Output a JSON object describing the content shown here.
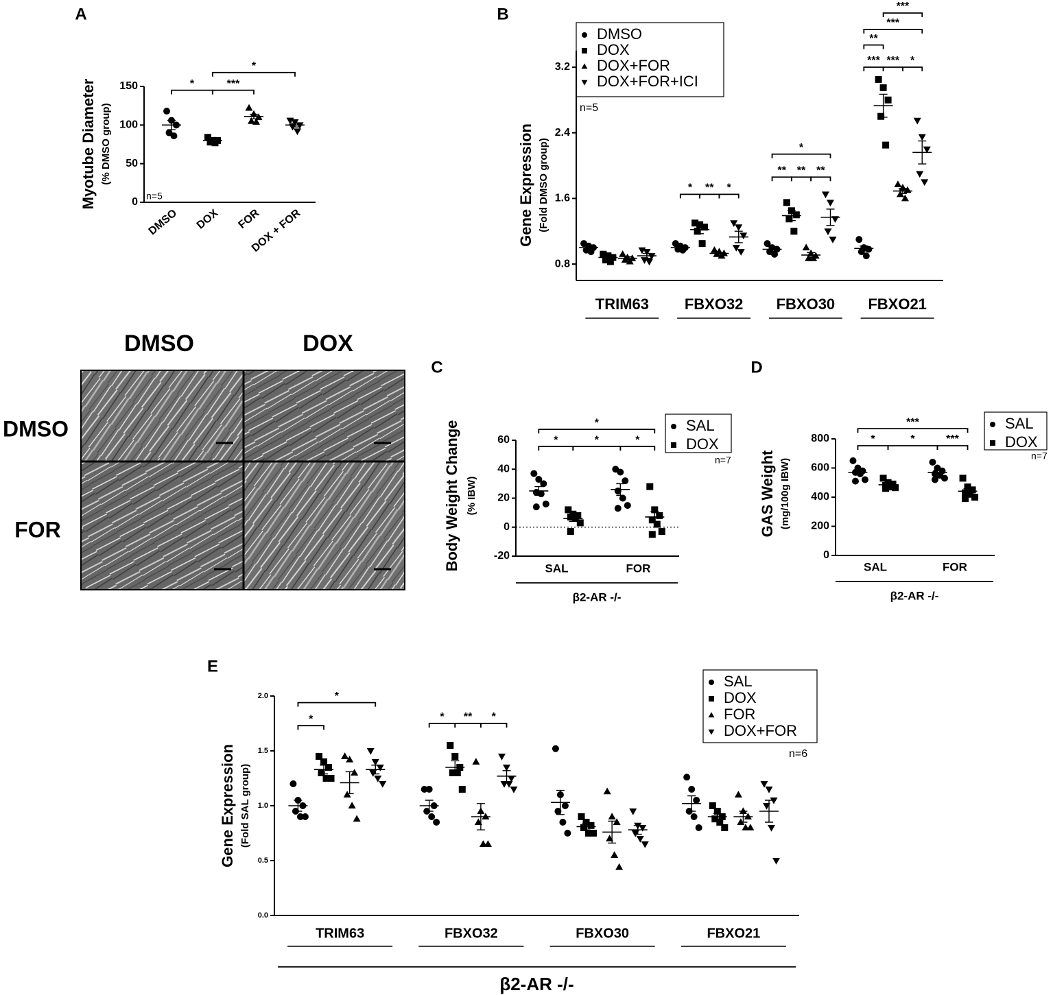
{
  "chart_data": [
    {
      "type": "dotplot",
      "panel": "A",
      "ylabel": "Myotube Diameter",
      "ylabel_sub": "(% DMSO group)",
      "color": "#000000",
      "ylim": [
        0,
        150
      ],
      "yticks": [
        0,
        50,
        100,
        150
      ],
      "groups": [
        null
      ],
      "series_ticks": true,
      "note": "n=5",
      "series": [
        {
          "name": "DMSO",
          "marker": "circle",
          "points": [
            [
              118,
              106,
              100,
              90,
              86
            ]
          ],
          "mean": [
            100
          ],
          "sem": [
            6
          ]
        },
        {
          "name": "DOX",
          "marker": "square",
          "points": [
            [
              84,
              80,
              80,
              78,
              77
            ]
          ],
          "mean": [
            80
          ],
          "sem": [
            1.5
          ]
        },
        {
          "name": "FOR",
          "marker": "triangle",
          "points": [
            [
              122,
              114,
              110,
              105,
              104
            ]
          ],
          "mean": [
            111
          ],
          "sem": [
            3
          ]
        },
        {
          "name": "DOX + FOR",
          "marker": "triangle-down",
          "points": [
            [
              106,
              104,
              100,
              98,
              92
            ]
          ],
          "mean": [
            100
          ],
          "sem": [
            2.5
          ]
        }
      ],
      "brackets": [
        {
          "from": [
            0,
            0
          ],
          "to": [
            0,
            1
          ],
          "y": 145,
          "label": "*"
        },
        {
          "from": [
            0,
            1
          ],
          "to": [
            0,
            2
          ],
          "y": 145,
          "label": "***"
        },
        {
          "from": [
            0,
            1
          ],
          "to": [
            0,
            3
          ],
          "y": 168,
          "label": "*"
        }
      ]
    },
    {
      "type": "dotplot",
      "panel": "B",
      "ylabel": "Gene Expression",
      "ylabel_sub": "(Fold DMSO group)",
      "color": "#000000",
      "ylim": [
        0.6,
        3.4
      ],
      "yticks": [
        0.8,
        1.6,
        2.4,
        3.2
      ],
      "groups": [
        "TRIM63",
        "FBXO32",
        "FBXO30",
        "FBXO21"
      ],
      "legend": "upper left",
      "note": "n=5",
      "series": [
        {
          "name": "DMSO",
          "marker": "circle",
          "points": [
            [
              1.05,
              1.02,
              1.0,
              0.97,
              0.95
            ],
            [
              1.05,
              1.02,
              1.0,
              0.98,
              0.97
            ],
            [
              1.05,
              1.0,
              0.98,
              0.95,
              0.92
            ],
            [
              1.1,
              1.0,
              0.98,
              0.95,
              0.9
            ]
          ],
          "mean": [
            1.0,
            1.0,
            0.98,
            0.99
          ],
          "sem": [
            0.02,
            0.02,
            0.03,
            0.03
          ]
        },
        {
          "name": "DOX",
          "marker": "square",
          "points": [
            [
              0.92,
              0.9,
              0.88,
              0.85,
              0.83
            ],
            [
              1.3,
              1.28,
              1.25,
              1.2,
              1.05
            ],
            [
              1.55,
              1.45,
              1.4,
              1.35,
              1.2
            ],
            [
              3.05,
              2.95,
              2.8,
              2.6,
              2.25
            ]
          ],
          "mean": [
            0.88,
            1.22,
            1.39,
            2.73
          ],
          "sem": [
            0.02,
            0.05,
            0.06,
            0.14
          ]
        },
        {
          "name": "DOX+FOR",
          "marker": "triangle",
          "points": [
            [
              0.92,
              0.88,
              0.87,
              0.85,
              0.83
            ],
            [
              0.97,
              0.95,
              0.93,
              0.92,
              0.9
            ],
            [
              1.0,
              0.93,
              0.9,
              0.87,
              0.87
            ],
            [
              1.77,
              1.73,
              1.7,
              1.65,
              1.6
            ]
          ],
          "mean": [
            0.87,
            0.93,
            0.91,
            1.69
          ],
          "sem": [
            0.02,
            0.01,
            0.03,
            0.03
          ]
        },
        {
          "name": "DOX+FOR+ICI",
          "marker": "triangle-down",
          "points": [
            [
              0.97,
              0.95,
              0.9,
              0.85,
              0.83
            ],
            [
              1.3,
              1.25,
              1.15,
              1.0,
              0.95
            ],
            [
              1.65,
              1.55,
              1.35,
              1.2,
              1.1
            ],
            [
              2.55,
              2.35,
              2.2,
              1.9,
              1.8
            ]
          ],
          "mean": [
            0.9,
            1.13,
            1.37,
            2.16
          ],
          "sem": [
            0.03,
            0.07,
            0.1,
            0.14
          ]
        }
      ],
      "brackets": [
        {
          "from": [
            1,
            0
          ],
          "to": [
            1,
            1
          ],
          "y": 1.65,
          "label": "*"
        },
        {
          "from": [
            1,
            1
          ],
          "to": [
            1,
            2
          ],
          "y": 1.65,
          "label": "**"
        },
        {
          "from": [
            1,
            2
          ],
          "to": [
            1,
            3
          ],
          "y": 1.65,
          "label": "*"
        },
        {
          "from": [
            2,
            0
          ],
          "to": [
            2,
            1
          ],
          "y": 1.86,
          "label": "**"
        },
        {
          "from": [
            2,
            1
          ],
          "to": [
            2,
            2
          ],
          "y": 1.86,
          "label": "**"
        },
        {
          "from": [
            2,
            2
          ],
          "to": [
            2,
            3
          ],
          "y": 1.86,
          "label": "**"
        },
        {
          "from": [
            2,
            0
          ],
          "to": [
            2,
            3
          ],
          "y": 2.14,
          "label": "*"
        },
        {
          "from": [
            3,
            0
          ],
          "to": [
            3,
            1
          ],
          "y": 3.2,
          "label": "***"
        },
        {
          "from": [
            3,
            1
          ],
          "to": [
            3,
            2
          ],
          "y": 3.2,
          "label": "***"
        },
        {
          "from": [
            3,
            2
          ],
          "to": [
            3,
            3
          ],
          "y": 3.2,
          "label": "*"
        },
        {
          "from": [
            3,
            0
          ],
          "to": [
            3,
            1
          ],
          "y": 3.47,
          "label": "**"
        },
        {
          "from": [
            3,
            0
          ],
          "to": [
            3,
            3
          ],
          "y": 3.66,
          "label": "***"
        },
        {
          "from": [
            3,
            1
          ],
          "to": [
            3,
            3
          ],
          "y": 3.86,
          "label": "***"
        }
      ]
    },
    {
      "type": "dotplot",
      "panel": "C",
      "ylabel": "Body Weight Change",
      "ylabel_sub": "(% IBW)",
      "color": "#000000",
      "ylim": [
        -20,
        60
      ],
      "yticks": [
        -20,
        0,
        20,
        40,
        60
      ],
      "zero_line": true,
      "groups": [
        "SAL",
        "FOR"
      ],
      "group_caption": "β2-AR -/-",
      "legend": "upper right",
      "note": "n=7",
      "series": [
        {
          "name": "SAL",
          "marker": "circle",
          "points": [
            [
              37,
              33,
              30,
              24,
              23,
              16,
              14
            ],
            [
              40,
              38,
              32,
              25,
              20,
              15,
              13
            ]
          ],
          "mean": [
            25,
            26
          ],
          "sem": [
            3,
            4
          ]
        },
        {
          "name": "DOX",
          "marker": "square",
          "points": [
            [
              12,
              9,
              8,
              7,
              6,
              3,
              -3
            ],
            [
              28,
              12,
              8,
              5,
              2,
              -3,
              -5
            ]
          ],
          "mean": [
            6,
            7
          ],
          "sem": [
            2,
            4
          ]
        }
      ],
      "brackets": [
        {
          "from": [
            0,
            0
          ],
          "to": [
            1,
            1
          ],
          "y": 67.5,
          "label": "*"
        },
        {
          "from": [
            0,
            0
          ],
          "to": [
            0,
            1
          ],
          "y": 55.7,
          "label": "*"
        },
        {
          "from": [
            0,
            1
          ],
          "to": [
            1,
            0
          ],
          "y": 55.7,
          "label": "*"
        },
        {
          "from": [
            1,
            0
          ],
          "to": [
            1,
            1
          ],
          "y": 55.7,
          "label": "*"
        }
      ]
    },
    {
      "type": "dotplot",
      "panel": "D",
      "ylabel": "GAS Weight",
      "ylabel_sub": "(mg/100g IBW)",
      "color": "#000000",
      "ylim": [
        0,
        800
      ],
      "yticks": [
        0,
        200,
        400,
        600,
        800
      ],
      "groups": [
        "SAL",
        "FOR"
      ],
      "group_caption": "β2-AR -/-",
      "legend": "upper right",
      "note": "n=7",
      "series": [
        {
          "name": "SAL",
          "marker": "circle",
          "points": [
            [
              650,
              600,
              580,
              570,
              560,
              520,
              510
            ],
            [
              640,
              600,
              580,
              560,
              550,
              530,
              520
            ]
          ],
          "mean": [
            570,
            569
          ],
          "sem": [
            18,
            15
          ]
        },
        {
          "name": "DOX",
          "marker": "square",
          "points": [
            [
              530,
              500,
              490,
              480,
              470,
              465,
              460
            ],
            [
              530,
              470,
              450,
              430,
              420,
              400,
              390
            ]
          ],
          "mean": [
            485,
            441
          ],
          "sem": [
            10,
            18
          ]
        }
      ],
      "brackets": [
        {
          "from": [
            0,
            0
          ],
          "to": [
            1,
            1
          ],
          "y": 870,
          "label": "***"
        },
        {
          "from": [
            0,
            0
          ],
          "to": [
            0,
            1
          ],
          "y": 753,
          "label": "*"
        },
        {
          "from": [
            0,
            1
          ],
          "to": [
            1,
            0
          ],
          "y": 753,
          "label": "*"
        },
        {
          "from": [
            1,
            0
          ],
          "to": [
            1,
            1
          ],
          "y": 753,
          "label": "***"
        }
      ]
    },
    {
      "type": "dotplot",
      "panel": "E",
      "ylabel": "Gene Expression",
      "ylabel_sub": "(Fold SAL group)",
      "color": "#000000",
      "ylim": [
        0,
        2
      ],
      "yticks": [
        {
          "value": 0,
          "label": "0.0"
        },
        0.5,
        {
          "value": 1,
          "label": "1.0"
        },
        1.5,
        {
          "value": 2,
          "label": "2.0"
        }
      ],
      "groups": [
        "TRIM63",
        "FBXO32",
        "FBXO30",
        "FBXO21"
      ],
      "group_caption": "β2-AR -/-",
      "legend": "upper right",
      "note": "n=6",
      "series": [
        {
          "name": "SAL",
          "marker": "circle",
          "points": [
            [
              1.2,
              1.05,
              1.0,
              0.95,
              0.9,
              0.9
            ],
            [
              1.15,
              1.15,
              1.0,
              0.95,
              0.9,
              0.85
            ],
            [
              1.52,
              1.1,
              1.0,
              0.95,
              0.85,
              0.75
            ],
            [
              1.26,
              1.15,
              1.05,
              0.95,
              0.9,
              0.8
            ]
          ],
          "mean": [
            1.0,
            1.0,
            1.03,
            1.02
          ],
          "sem": [
            0.05,
            0.05,
            0.11,
            0.07
          ]
        },
        {
          "name": "DOX",
          "marker": "square",
          "points": [
            [
              1.45,
              1.4,
              1.35,
              1.3,
              1.25,
              1.25
            ],
            [
              1.55,
              1.45,
              1.35,
              1.3,
              1.3,
              1.15
            ],
            [
              0.9,
              0.85,
              0.82,
              0.8,
              0.75,
              0.75
            ],
            [
              1.0,
              0.95,
              0.9,
              0.88,
              0.85,
              0.8
            ]
          ],
          "mean": [
            1.33,
            1.35,
            0.81,
            0.9
          ],
          "sem": [
            0.04,
            0.06,
            0.03,
            0.03
          ]
        },
        {
          "name": "FOR",
          "marker": "triangle",
          "points": [
            [
              1.45,
              1.42,
              1.3,
              1.1,
              1.0,
              0.88
            ],
            [
              1.4,
              0.95,
              0.9,
              0.85,
              0.65,
              0.65
            ],
            [
              1.13,
              0.9,
              0.85,
              0.7,
              0.55,
              0.44
            ],
            [
              1.1,
              0.95,
              0.9,
              0.85,
              0.8,
              0.8
            ]
          ],
          "mean": [
            1.21,
            0.9,
            0.76,
            0.9
          ],
          "sem": [
            0.1,
            0.12,
            0.1,
            0.05
          ]
        },
        {
          "name": "DOX+FOR",
          "marker": "triangle-down",
          "points": [
            [
              1.5,
              1.4,
              1.35,
              1.3,
              1.25,
              1.2
            ],
            [
              1.45,
              1.35,
              1.25,
              1.2,
              1.2,
              1.15
            ],
            [
              0.95,
              0.82,
              0.8,
              0.75,
              0.7,
              0.65
            ],
            [
              1.2,
              1.15,
              1.05,
              1.0,
              0.8,
              0.5
            ]
          ],
          "mean": [
            1.33,
            1.27,
            0.78,
            0.95
          ],
          "sem": [
            0.04,
            0.05,
            0.04,
            0.1
          ]
        }
      ],
      "brackets": [
        {
          "from": [
            0,
            0
          ],
          "to": [
            0,
            1
          ],
          "y": 1.73,
          "label": "*"
        },
        {
          "from": [
            0,
            0
          ],
          "to": [
            0,
            3
          ],
          "y": 1.94,
          "label": "*"
        },
        {
          "from": [
            1,
            0
          ],
          "to": [
            1,
            1
          ],
          "y": 1.75,
          "label": "*"
        },
        {
          "from": [
            1,
            1
          ],
          "to": [
            1,
            2
          ],
          "y": 1.75,
          "label": "**"
        },
        {
          "from": [
            1,
            2
          ],
          "to": [
            1,
            3
          ],
          "y": 1.75,
          "label": "*"
        }
      ]
    }
  ],
  "micrograph": {
    "columns": [
      "DMSO",
      "DOX"
    ],
    "rows": [
      "DMSO",
      "FOR"
    ]
  }
}
